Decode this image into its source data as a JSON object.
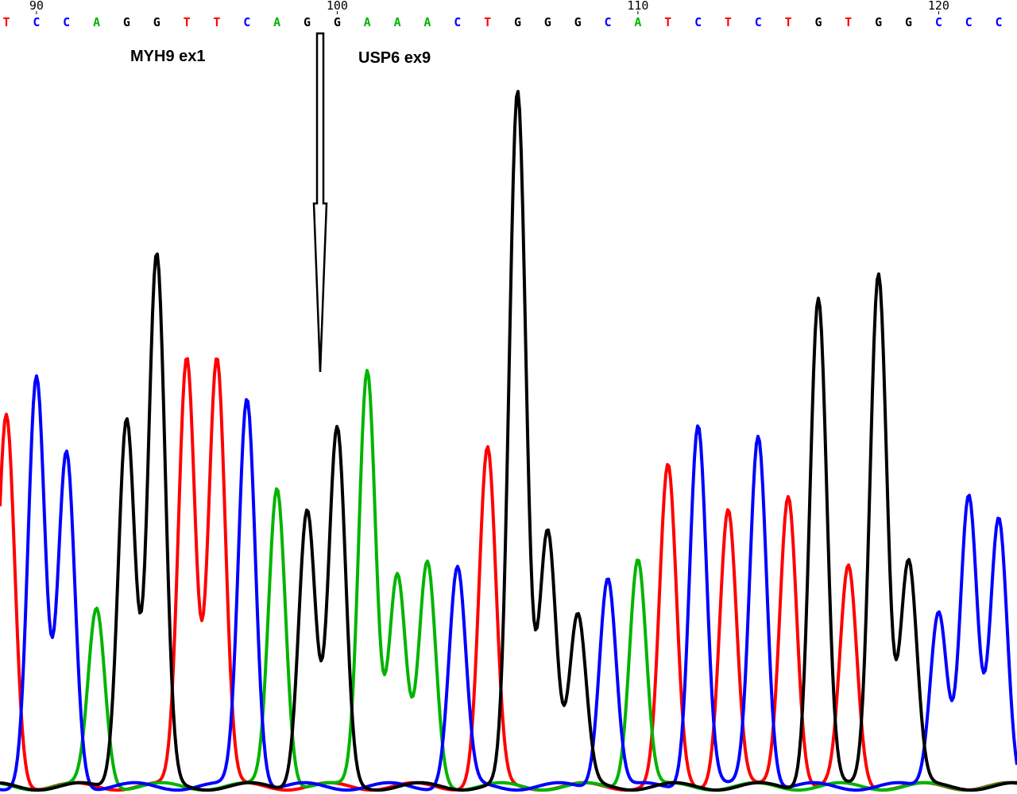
{
  "chart_data": {
    "type": "line",
    "title": "",
    "xlabel": "",
    "ylabel": "",
    "position_labels": [
      {
        "label": "90",
        "index": 1
      },
      {
        "label": "100",
        "index": 11
      },
      {
        "label": "110",
        "index": 21
      },
      {
        "label": "120",
        "index": 31
      }
    ],
    "sequence": [
      "T",
      "C",
      "C",
      "A",
      "G",
      "G",
      "T",
      "T",
      "C",
      "A",
      "G",
      "G",
      "A",
      "A",
      "A",
      "C",
      "T",
      "G",
      "G",
      "G",
      "C",
      "A",
      "T",
      "C",
      "T",
      "C",
      "T",
      "G",
      "T",
      "G",
      "G",
      "C",
      "C",
      "C"
    ],
    "base_colors": {
      "A": "#00b400",
      "C": "#0000ff",
      "G": "#000000",
      "T": "#ff0000"
    },
    "ylim": [
      0,
      1000
    ],
    "peaks": [
      {
        "base": "T",
        "height": 500
      },
      {
        "base": "C",
        "height": 550
      },
      {
        "base": "C",
        "height": 450
      },
      {
        "base": "A",
        "height": 240
      },
      {
        "base": "G",
        "height": 500
      },
      {
        "base": "G",
        "height": 715
      },
      {
        "base": "T",
        "height": 580
      },
      {
        "base": "T",
        "height": 580
      },
      {
        "base": "C",
        "height": 525
      },
      {
        "base": "A",
        "height": 405
      },
      {
        "base": "G",
        "height": 375
      },
      {
        "base": "G",
        "height": 480
      },
      {
        "base": "A",
        "height": 565
      },
      {
        "base": "A",
        "height": 285
      },
      {
        "base": "A",
        "height": 300
      },
      {
        "base": "C",
        "height": 295
      },
      {
        "base": "T",
        "height": 455
      },
      {
        "base": "G",
        "height": 935
      },
      {
        "base": "G",
        "height": 350
      },
      {
        "base": "G",
        "height": 230
      },
      {
        "base": "C",
        "height": 285
      },
      {
        "base": "A",
        "height": 310
      },
      {
        "base": "T",
        "height": 430
      },
      {
        "base": "C",
        "height": 490
      },
      {
        "base": "T",
        "height": 375
      },
      {
        "base": "C",
        "height": 475
      },
      {
        "base": "T",
        "height": 395
      },
      {
        "base": "G",
        "height": 660
      },
      {
        "base": "T",
        "height": 295
      },
      {
        "base": "G",
        "height": 695
      },
      {
        "base": "G",
        "height": 305
      },
      {
        "base": "C",
        "height": 240
      },
      {
        "base": "C",
        "height": 390
      },
      {
        "base": "C",
        "height": 360
      }
    ],
    "annotations": [
      {
        "text": "MYH9 ex1"
      },
      {
        "text": "USP6 ex9"
      }
    ],
    "breakpoint_arrow": "down-arrow"
  }
}
